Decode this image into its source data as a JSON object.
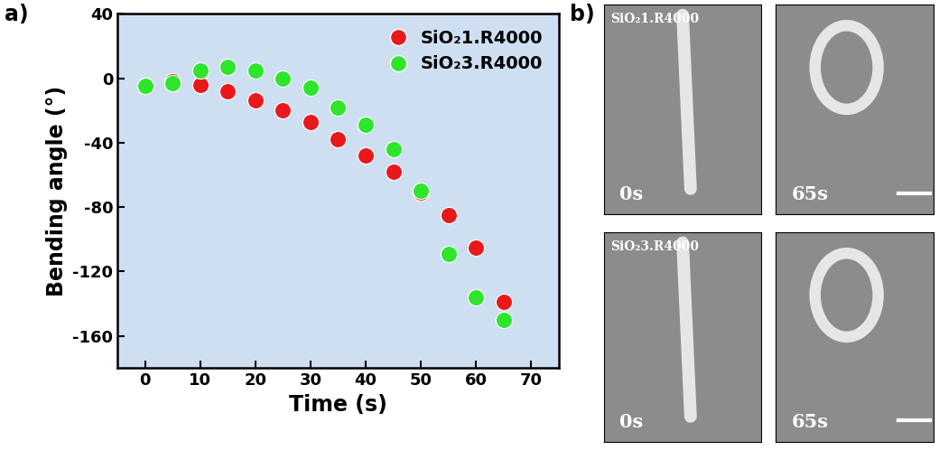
{
  "chart_data": {
    "type": "scatter",
    "x_label": "Time (s)",
    "y_label": "Bending angle (°)",
    "x": [
      0,
      5,
      10,
      15,
      20,
      25,
      30,
      35,
      40,
      45,
      50,
      55,
      60,
      65
    ],
    "series": [
      {
        "name": "SiO₂1.R4000",
        "color": "#e8191c",
        "marker": "o",
        "values": [
          -5,
          -2,
          -4,
          -8,
          -14,
          -20,
          -27,
          -38,
          -48,
          -58,
          -71,
          -85,
          -105,
          -139
        ]
      },
      {
        "name": "SiO₂3.R4000",
        "color": "#2ee52b",
        "marker": "o",
        "values": [
          -5,
          -3,
          5,
          7,
          5,
          0,
          -6,
          -18,
          -29,
          -44,
          -70,
          -109,
          -136,
          -150
        ]
      }
    ],
    "xlim": [
      -5,
      75
    ],
    "xticks": [
      0,
      10,
      20,
      30,
      40,
      50,
      60,
      70
    ],
    "ylim": [
      -180,
      40
    ],
    "yticks": [
      -160,
      -120,
      -80,
      -40,
      0,
      40
    ],
    "grid": false,
    "legend": "upper right"
  },
  "figure": {
    "panel_labels": [
      "a)",
      "b)"
    ]
  },
  "photos": {
    "rows": [
      {
        "sample": "SiO₂1.R4000",
        "times": [
          "0s",
          "65s"
        ]
      },
      {
        "sample": "SiO₂3.R4000",
        "times": [
          "0s",
          "65s"
        ]
      }
    ]
  }
}
